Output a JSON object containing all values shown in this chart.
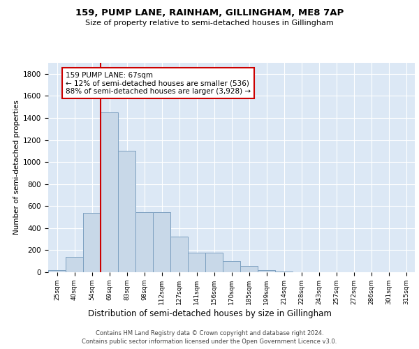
{
  "title1": "159, PUMP LANE, RAINHAM, GILLINGHAM, ME8 7AP",
  "title2": "Size of property relative to semi-detached houses in Gillingham",
  "xlabel": "Distribution of semi-detached houses by size in Gillingham",
  "ylabel": "Number of semi-detached properties",
  "categories": [
    "25sqm",
    "40sqm",
    "54sqm",
    "69sqm",
    "83sqm",
    "98sqm",
    "112sqm",
    "127sqm",
    "141sqm",
    "156sqm",
    "170sqm",
    "185sqm",
    "199sqm",
    "214sqm",
    "228sqm",
    "243sqm",
    "257sqm",
    "272sqm",
    "286sqm",
    "301sqm",
    "315sqm"
  ],
  "values": [
    20,
    140,
    540,
    1450,
    1100,
    545,
    545,
    325,
    175,
    175,
    100,
    60,
    17,
    5,
    0,
    0,
    0,
    0,
    0,
    0,
    0
  ],
  "bar_color": "#c8d8e8",
  "bar_edge_color": "#7ca0c0",
  "annotation_text": "159 PUMP LANE: 67sqm\n← 12% of semi-detached houses are smaller (536)\n88% of semi-detached houses are larger (3,928) →",
  "annotation_box_color": "#ffffff",
  "annotation_box_edge": "#cc0000",
  "red_line_x": 3,
  "ylim": [
    0,
    1900
  ],
  "yticks": [
    0,
    200,
    400,
    600,
    800,
    1000,
    1200,
    1400,
    1600,
    1800
  ],
  "background_color": "#dce8f5",
  "grid_color": "#ffffff",
  "fig_background": "#ffffff",
  "footer1": "Contains HM Land Registry data © Crown copyright and database right 2024.",
  "footer2": "Contains public sector information licensed under the Open Government Licence v3.0."
}
